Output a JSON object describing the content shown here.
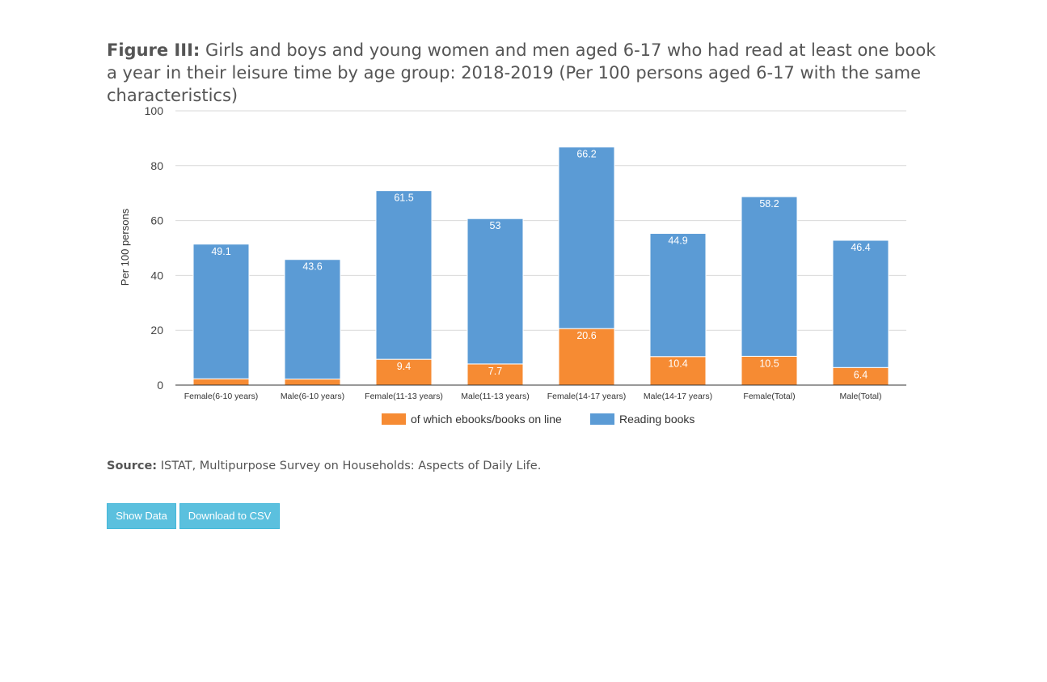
{
  "figure": {
    "label": "Figure III:",
    "text": "Girls and boys and young women and men aged 6-17 who had read at least one book a year in their leisure time by age group: 2018-2019 (Per 100 persons aged 6-17 with the same characteristics)"
  },
  "source": {
    "label": "Source:",
    "text": "ISTAT, Multipurpose Survey on Households: Aspects of Daily Life."
  },
  "buttons": {
    "show_data": "Show Data",
    "download_csv": "Download to CSV"
  },
  "chart_data": {
    "type": "bar",
    "stacked": true,
    "categories": [
      "Female(6-10 years)",
      "Male(6-10 years)",
      "Female(11-13 years)",
      "Male(11-13 years)",
      "Female(14-17 years)",
      "Male(14-17 years)",
      "Female(Total)",
      "Male(Total)"
    ],
    "series": [
      {
        "name": "of which ebooks/books on line",
        "color": "#f68b33",
        "values": [
          2.3,
          2.2,
          9.4,
          7.7,
          20.6,
          10.4,
          10.5,
          6.4
        ]
      },
      {
        "name": "Reading books",
        "color": "#5b9bd5",
        "values": [
          49.1,
          43.6,
          61.5,
          53,
          66.2,
          44.9,
          58.2,
          46.4
        ]
      }
    ],
    "ylabel": "Per 100 persons",
    "ylim": [
      0,
      100
    ],
    "yticks": [
      0,
      20,
      40,
      60,
      80,
      100
    ],
    "grid": true,
    "legend": "bottom"
  }
}
